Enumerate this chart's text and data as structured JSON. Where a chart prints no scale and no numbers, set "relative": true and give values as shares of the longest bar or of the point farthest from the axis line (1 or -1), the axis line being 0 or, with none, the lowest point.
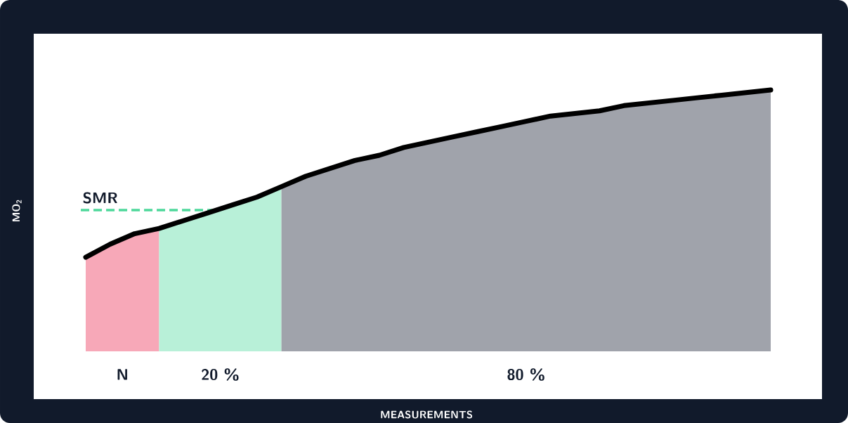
{
  "chart_data": {
    "type": "area",
    "relative": true,
    "annotations": [
      "MEASUREMENTS"
    ],
    "ylabel": "MO$_{2}$",
    "categories": [
      null,
      null,
      null,
      null,
      null,
      null,
      null,
      null,
      null,
      null,
      null,
      null,
      null,
      null,
      null,
      null,
      null,
      null,
      null,
      null,
      null,
      null,
      null,
      null,
      null,
      null,
      null,
      null,
      null
    ],
    "series": [
      {
        "name": "N",
        "color": "#f7a8b8",
        "values": [
          0.36,
          0.41,
          0.45,
          0.47,
          null,
          null,
          null,
          null,
          null,
          null,
          null,
          null,
          null,
          null,
          null,
          null,
          null,
          null,
          null,
          null,
          null,
          null,
          null,
          null,
          null,
          null,
          null,
          null,
          null
        ]
      },
      {
        "name": "20 %",
        "color": "#b8f0d8",
        "values": [
          null,
          null,
          null,
          0.47,
          0.5,
          0.53,
          0.56,
          0.59,
          0.63,
          null,
          null,
          null,
          null,
          null,
          null,
          null,
          null,
          null,
          null,
          null,
          null,
          null,
          null,
          null,
          null,
          null,
          null,
          null,
          null
        ]
      },
      {
        "name": "80 %",
        "color": "#a0a3ab",
        "values": [
          null,
          null,
          null,
          null,
          null,
          null,
          null,
          null,
          0.63,
          0.67,
          0.7,
          0.73,
          0.75,
          0.78,
          0.8,
          0.82,
          0.84,
          0.86,
          0.88,
          0.9,
          0.91,
          0.92,
          0.94,
          0.95,
          0.96,
          0.97,
          0.98,
          0.99,
          1.0
        ]
      },
      {
        "type": "line",
        "color": "#000000",
        "values": [
          0.36,
          0.41,
          0.45,
          0.47,
          0.5,
          0.53,
          0.56,
          0.59,
          0.63,
          0.67,
          0.7,
          0.73,
          0.75,
          0.78,
          0.8,
          0.82,
          0.84,
          0.86,
          0.88,
          0.9,
          0.91,
          0.92,
          0.94,
          0.95,
          0.96,
          0.97,
          0.98,
          0.99,
          1.0
        ]
      }
    ],
    "ref_lines": [
      {
        "axis": "y",
        "value": 0.54,
        "label": "SMR",
        "color": "#4ed89b",
        "line_style": "dashed"
      }
    ]
  }
}
